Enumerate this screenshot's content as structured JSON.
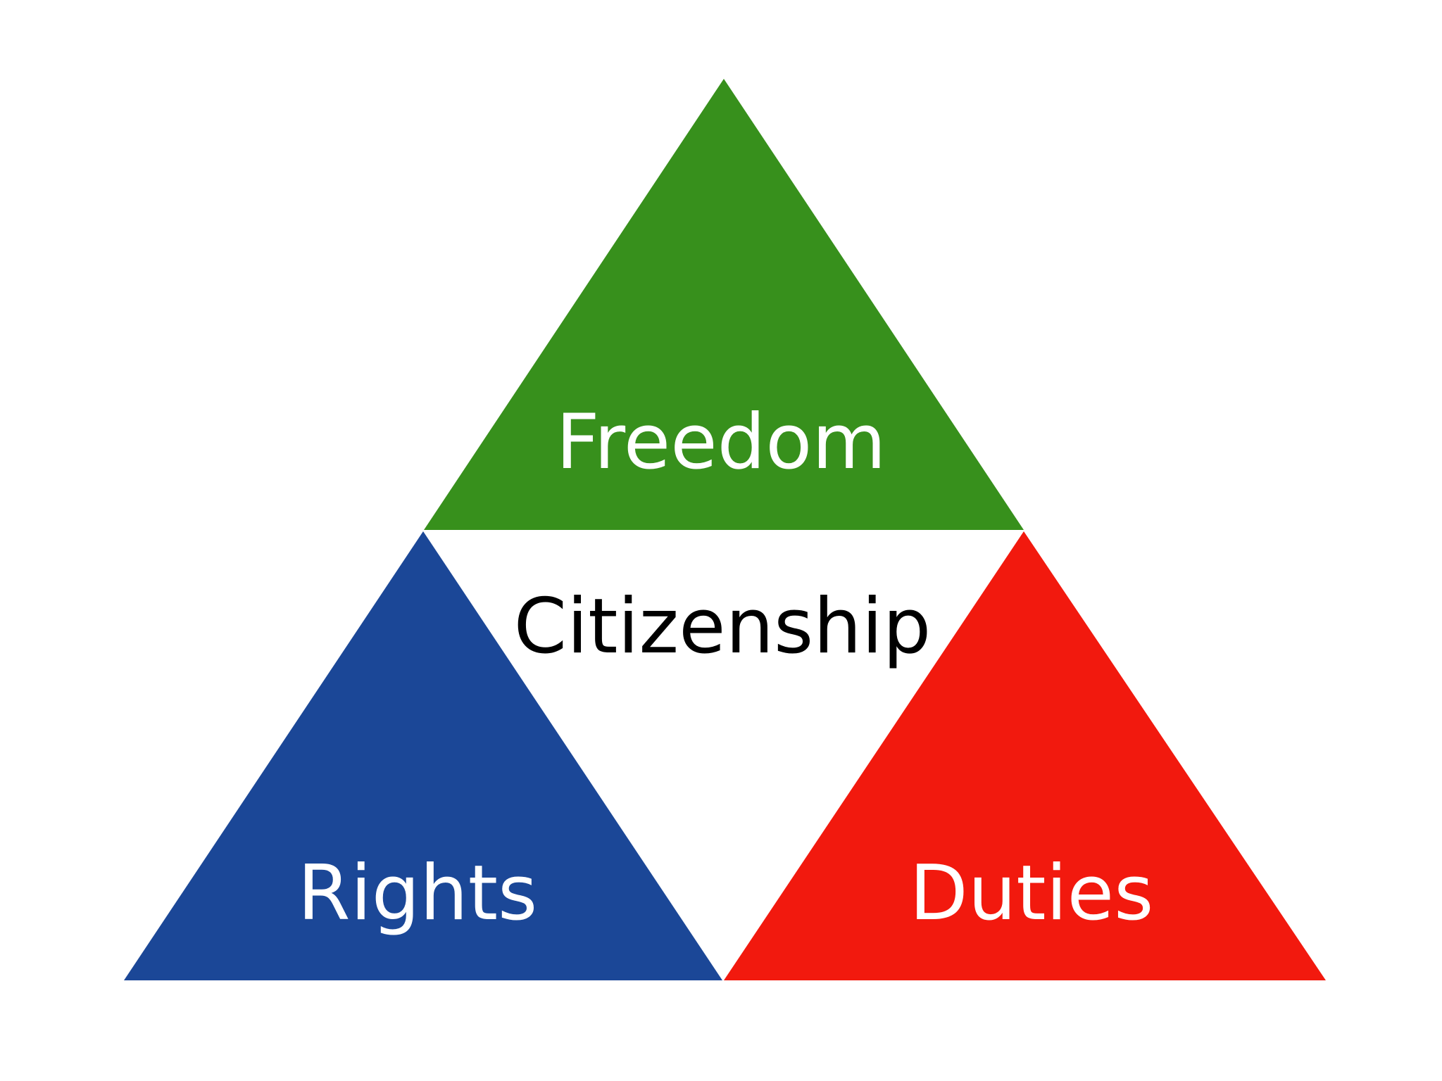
{
  "diagram": {
    "top": {
      "label": "Freedom",
      "color": "#37901c"
    },
    "left": {
      "label": "Rights",
      "color": "#1b4797"
    },
    "right": {
      "label": "Duties",
      "color": "#f2190e"
    },
    "center": {
      "label": "Citizenship"
    },
    "label_colors": {
      "outer": "#ffffff",
      "center": "#000000"
    }
  }
}
